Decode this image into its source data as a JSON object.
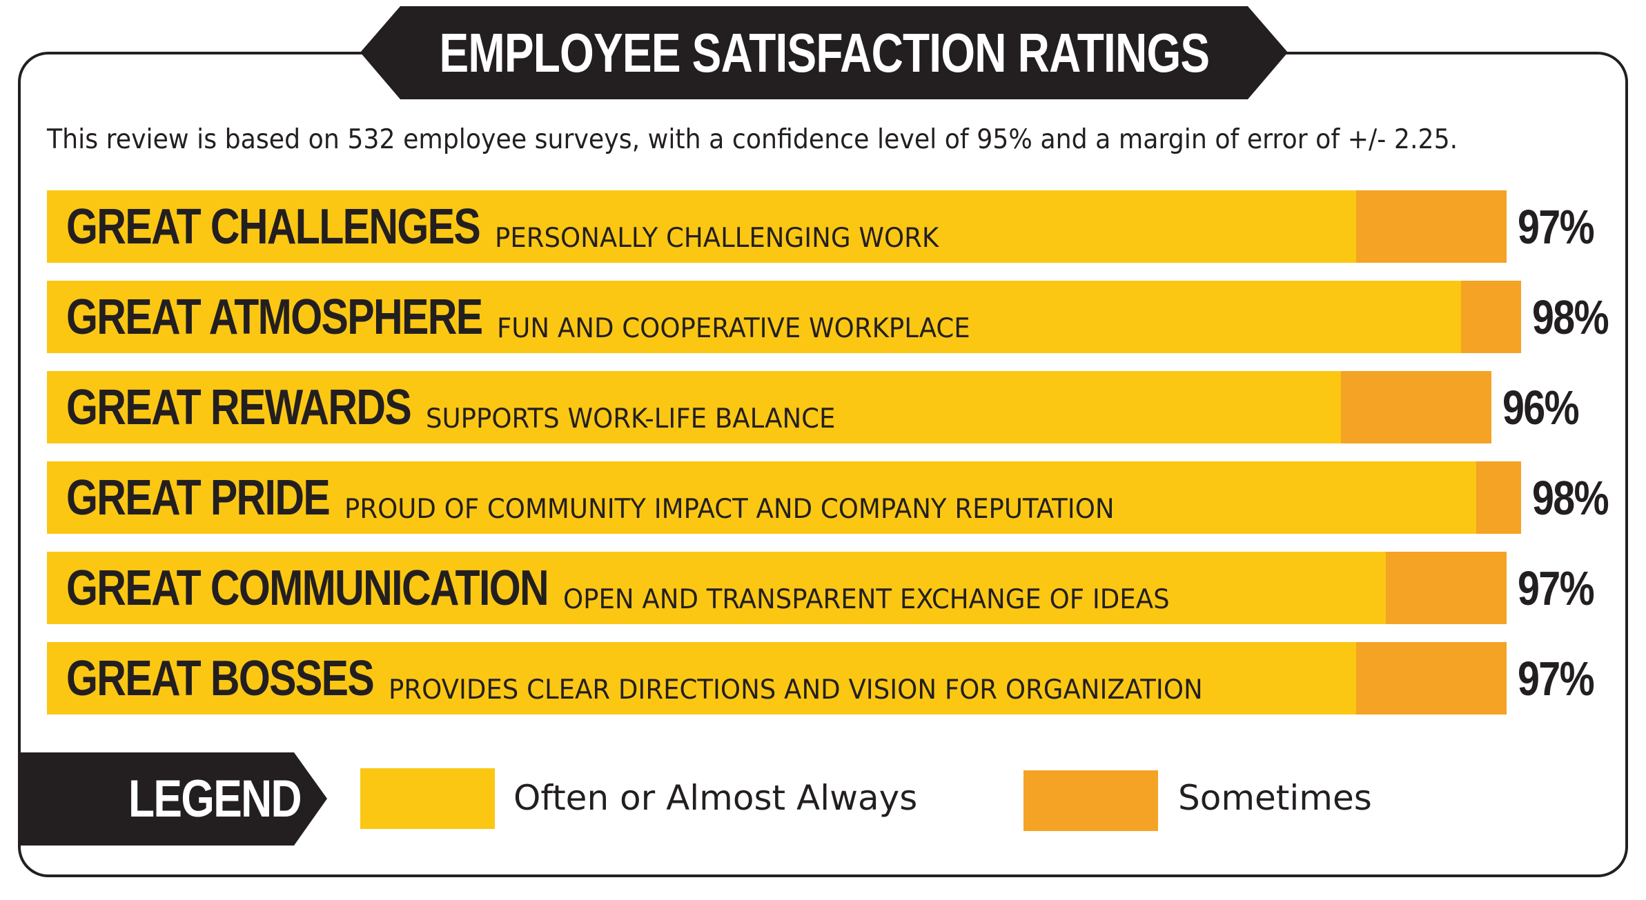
{
  "title": "EMPLOYEE SATISFACTION RATINGS",
  "subtitle": "This review is based on 532 employee surveys, with a confidence level of 95% and a margin of error of +/- 2.25.",
  "colors": {
    "often": "#fbc713",
    "sometimes": "#f4a325",
    "dark": "#231f20"
  },
  "legend": {
    "title": "LEGEND",
    "items": [
      {
        "label": "Often or Almost Always",
        "color": "#fbc713"
      },
      {
        "label": "Sometimes",
        "color": "#f4a325"
      }
    ]
  },
  "chart_data": {
    "type": "bar",
    "orientation": "horizontal",
    "stacked": true,
    "xlim": [
      0,
      100
    ],
    "categories": [
      "GREAT CHALLENGES",
      "GREAT ATMOSPHERE",
      "GREAT REWARDS",
      "GREAT PRIDE",
      "GREAT COMMUNICATION",
      "GREAT BOSSES"
    ],
    "descriptions": [
      "PERSONALLY CHALLENGING WORK",
      "FUN AND COOPERATIVE WORKPLACE",
      "SUPPORTS WORK-LIFE BALANCE",
      "PROUD OF COMMUNITY IMPACT AND COMPANY REPUTATION",
      "OPEN AND TRANSPARENT EXCHANGE OF IDEAS",
      "PROVIDES CLEAR DIRECTIONS AND VISION FOR ORGANIZATION"
    ],
    "series": [
      {
        "name": "Often or Almost Always",
        "values": [
          87,
          94,
          86,
          95,
          89,
          87
        ]
      },
      {
        "name": "Sometimes",
        "values": [
          10,
          4,
          10,
          3,
          8,
          10
        ]
      }
    ],
    "totals": [
      "97%",
      "98%",
      "96%",
      "98%",
      "97%",
      "97%"
    ],
    "legend_position": "bottom"
  }
}
